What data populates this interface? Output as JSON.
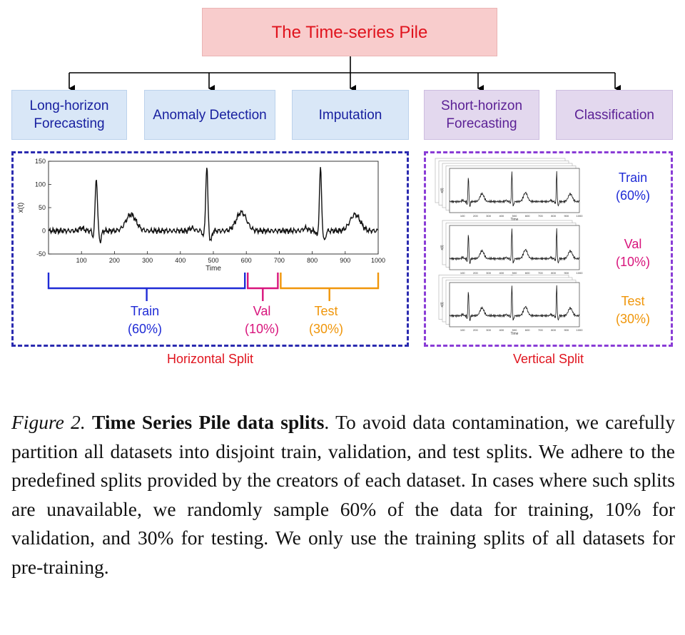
{
  "title": "The Time-series Pile",
  "tasks": [
    {
      "label": "Long-horizon Forecasting",
      "line1": "Long-horizon",
      "line2": "Forecasting",
      "color": "#1820a0"
    },
    {
      "label": "Anomaly Detection",
      "color": "#1820a0"
    },
    {
      "label": "Imputation",
      "color": "#1820a0"
    },
    {
      "label": "Short-horizon Forecasting",
      "line1": "Short-horizon",
      "line2": "Forecasting",
      "color": "#5c2296"
    },
    {
      "label": "Classification",
      "color": "#5c2296"
    }
  ],
  "horizontal": {
    "title": "Horizontal Split",
    "border_color": "#2b2bb0",
    "splits": [
      {
        "name": "Train",
        "pct": "(60%)",
        "color": "#1f2bd6"
      },
      {
        "name": "Val",
        "pct": "(10%)",
        "color": "#d8147c"
      },
      {
        "name": "Test",
        "pct": "(30%)",
        "color": "#f0960a"
      }
    ]
  },
  "vertical": {
    "title": "Vertical Split",
    "border_color": "#8a3cd6",
    "splits": [
      {
        "name": "Train",
        "pct": "(60%)",
        "color": "#1f2bd6"
      },
      {
        "name": "Val",
        "pct": "(10%)",
        "color": "#d8147c"
      },
      {
        "name": "Test",
        "pct": "(30%)",
        "color": "#f0960a"
      }
    ]
  },
  "chart_data": {
    "type": "line",
    "xlabel": "Time",
    "ylabel": "x(t)",
    "xlim": [
      0,
      1000
    ],
    "ylim": [
      -50,
      150
    ],
    "xticks": [
      "100",
      "200",
      "300",
      "400",
      "500",
      "600",
      "700",
      "800",
      "900",
      "1000"
    ],
    "yticks": [
      "-50",
      "0",
      "50",
      "100",
      "150"
    ],
    "split_boundaries": [
      0,
      600,
      700,
      1000
    ],
    "ecg_beats": [
      {
        "r_peak_x": 145,
        "r_peak_y": 115,
        "t_wave_x": 250,
        "t_wave_y": 35
      },
      {
        "r_peak_x": 480,
        "r_peak_y": 138,
        "t_wave_x": 585,
        "t_wave_y": 40
      },
      {
        "r_peak_x": 825,
        "r_peak_y": 135,
        "t_wave_x": 930,
        "t_wave_y": 35
      }
    ],
    "mini_xtick_labels": [
      "100",
      "200",
      "300",
      "400",
      "500",
      "600",
      "700",
      "800",
      "900",
      "1000"
    ],
    "mini_xlabel": "Time"
  },
  "caption": {
    "figure_label": "Figure 2.",
    "bold_title": "Time Series Pile data splits",
    "body": ". To avoid data contamination, we carefully partition all datasets into disjoint train, validation, and test splits. We adhere to the predefined splits provided by the creators of each dataset. In cases where such splits are unavailable, we randomly sample 60% of the data for training, 10% for validation, and 30% for testing. We only use the training splits of all datasets for pre-training."
  }
}
